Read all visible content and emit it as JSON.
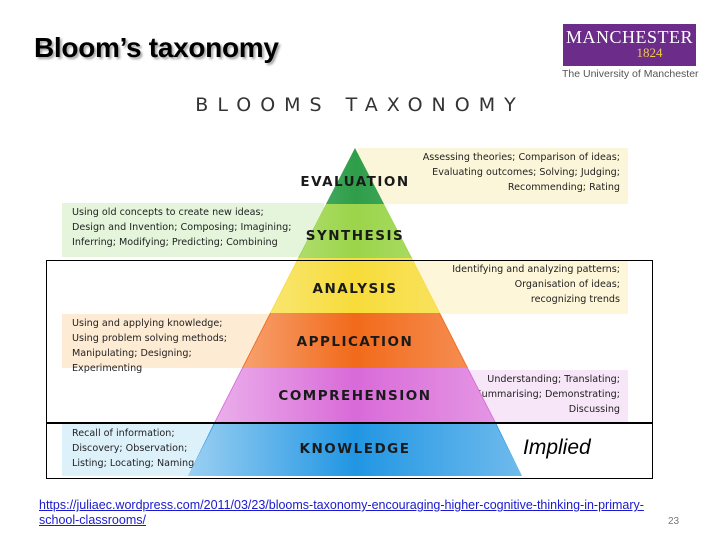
{
  "slide": {
    "title": "Bloom’s taxonomy",
    "page_number": "23"
  },
  "logo": {
    "name": "MANCHESTER",
    "year": "1824",
    "subtitle": "The University of Manchester",
    "color": "#6b2c8a"
  },
  "diagram": {
    "heading": "BLOOMS TAXONOMY",
    "tiers": [
      {
        "label": "EVALUATION",
        "color": "#2e9e4a",
        "description_side": "right",
        "description": [
          "Assessing theories; Comparison of ideas;",
          "Evaluating outcomes; Solving; Judging;",
          "Recommending; Rating"
        ],
        "description_bg": "#fbf6d9"
      },
      {
        "label": "SYNTHESIS",
        "color": "#9bd54a",
        "description_side": "left",
        "description": [
          "Using old concepts to create new ideas;",
          "Design and Invention; Composing; Imagining;",
          "Inferring; Modifying; Predicting; Combining"
        ],
        "description_bg": "#e4f5dc"
      },
      {
        "label": "ANALYSIS",
        "color": "#f7dc3a",
        "description_side": "right",
        "description": [
          "Identifying and analyzing patterns;",
          "Organisation of ideas;",
          "recognizing trends"
        ],
        "description_bg": "#fdf6d8"
      },
      {
        "label": "APPLICATION",
        "color": "#f26a1b",
        "description_side": "left",
        "description": [
          "Using and applying knowledge;",
          "Using problem solving methods;",
          "Manipulating; Designing; Experimenting"
        ],
        "description_bg": "#fdebd4"
      },
      {
        "label": "COMPREHENSION",
        "color": "#d96ad9",
        "description_side": "right",
        "description": [
          "Understanding; Translating;",
          "Summarising; Demonstrating;",
          "Discussing"
        ],
        "description_bg": "#f7e6f7"
      },
      {
        "label": "KNOWLEDGE",
        "color": "#2196e3",
        "description_side": "left",
        "description": [
          "Recall of information;",
          "Discovery; Observation;",
          "Listing; Locating; Naming"
        ],
        "description_bg": "#ddf1fb"
      }
    ],
    "implied_label": "Implied"
  },
  "source": {
    "url_text": "https://juliaec.wordpress.com/2011/03/23/blooms-taxonomy-encouraging-higher-cognitive-thinking-in-primary-school-classrooms/"
  }
}
